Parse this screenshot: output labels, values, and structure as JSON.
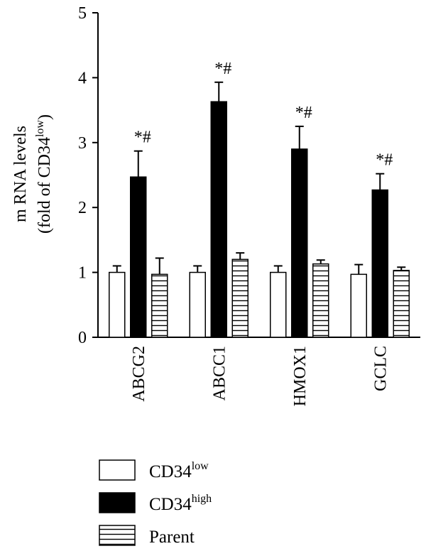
{
  "chart_data": {
    "type": "bar",
    "ylabel_line1": "m RNA levels",
    "ylabel_line2_prefix": "(fold of CD34",
    "ylabel_line2_sup": "low",
    "ylabel_line2_suffix": ")",
    "ylim": [
      0,
      5
    ],
    "yticks": [
      "0",
      "1",
      "2",
      "3",
      "4",
      "5"
    ],
    "categories": [
      "ABCG2",
      "ABCC1",
      "HMOX1",
      "GCLC"
    ],
    "series": [
      {
        "name": "CD34low",
        "legend_base": "CD34",
        "legend_sup": "low",
        "fill": "white",
        "values": [
          1.0,
          1.0,
          1.0,
          0.97
        ],
        "errors": [
          0.1,
          0.1,
          0.1,
          0.15
        ]
      },
      {
        "name": "CD34high",
        "legend_base": "CD34",
        "legend_sup": "high",
        "fill": "black",
        "values": [
          2.47,
          3.63,
          2.9,
          2.27
        ],
        "errors": [
          0.4,
          0.3,
          0.35,
          0.25
        ]
      },
      {
        "name": "Parent",
        "legend_base": "Parent",
        "legend_sup": "",
        "fill": "hstripes",
        "values": [
          0.97,
          1.2,
          1.13,
          1.03
        ],
        "errors": [
          0.25,
          0.1,
          0.06,
          0.05
        ]
      }
    ],
    "annotations": [
      "*#",
      "*#",
      "*#",
      "*#"
    ],
    "grid": false,
    "legend_placement": "bottom"
  }
}
